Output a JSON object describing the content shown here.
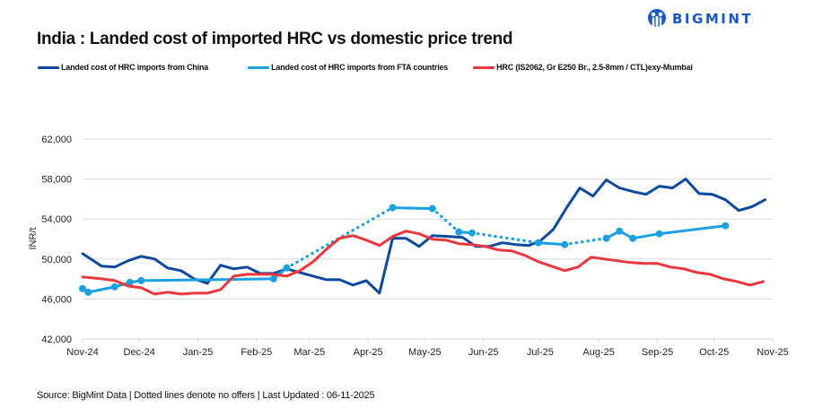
{
  "brand": {
    "name": "BIGMINT",
    "color": "#1a56c4"
  },
  "header": {
    "title": "India : Landed cost of imported HRC vs domestic price trend"
  },
  "footer": {
    "text": "Source: BigMint Data | Dotted lines denote no offers | Last Updated : 06-11-2025"
  },
  "chart_data": {
    "type": "line",
    "title": "India : Landed cost of imported HRC vs domestic price trend",
    "xlabel": "",
    "ylabel": "INR/t",
    "ylim": [
      42000,
      62000
    ],
    "yticks": [
      42000,
      46000,
      50000,
      54000,
      58000,
      62000
    ],
    "ytick_labels": [
      "42,000",
      "46,000",
      "50,000",
      "54,000",
      "58,000",
      "62,000"
    ],
    "xlim": [
      "2024-11-01",
      "2025-11-01"
    ],
    "xticks": [
      "2024-11-01",
      "2024-12-01",
      "2025-01-01",
      "2025-02-01",
      "2025-03-01",
      "2025-04-01",
      "2025-05-01",
      "2025-06-01",
      "2025-07-01",
      "2025-08-01",
      "2025-09-01",
      "2025-10-01",
      "2025-11-01"
    ],
    "xtick_labels": [
      "Nov-24",
      "Dec-24",
      "Jan-25",
      "Feb-25",
      "Mar-25",
      "Apr-25",
      "May-25",
      "Jun-25",
      "Jul-25",
      "Aug-25",
      "Sep-25",
      "Oct-25",
      "Nov-25"
    ],
    "grid": "horizontal",
    "legend_position": "top",
    "series": [
      {
        "name": "Landed cost of HRC imports from China",
        "color": "#0d4a9e",
        "markers": false,
        "points": [
          [
            "2024-11-01",
            50540
          ],
          [
            "2024-11-11",
            49280
          ],
          [
            "2024-11-18",
            49190
          ],
          [
            "2024-11-25",
            49820
          ],
          [
            "2024-12-02",
            50270
          ],
          [
            "2024-12-09",
            50000
          ],
          [
            "2024-12-16",
            49100
          ],
          [
            "2024-12-23",
            48830
          ],
          [
            "2024-12-30",
            48020
          ],
          [
            "2025-01-06",
            47570
          ],
          [
            "2025-01-13",
            49370
          ],
          [
            "2025-01-20",
            49010
          ],
          [
            "2025-01-27",
            49190
          ],
          [
            "2025-02-03",
            48560
          ],
          [
            "2025-02-10",
            48560
          ],
          [
            "2025-02-17",
            49010
          ],
          [
            "2025-02-24",
            48650
          ],
          [
            "2025-03-03",
            48290
          ],
          [
            "2025-03-10",
            47930
          ],
          [
            "2025-03-17",
            47930
          ],
          [
            "2025-03-24",
            47390
          ],
          [
            "2025-03-31",
            47840
          ],
          [
            "2025-04-07",
            46580
          ],
          [
            "2025-04-14",
            52070
          ],
          [
            "2025-04-21",
            52070
          ],
          [
            "2025-04-28",
            51260
          ],
          [
            "2025-05-05",
            52340
          ],
          [
            "2025-05-14",
            52250
          ],
          [
            "2025-05-21",
            52160
          ],
          [
            "2025-05-28",
            51260
          ],
          [
            "2025-06-04",
            51260
          ],
          [
            "2025-06-11",
            51620
          ],
          [
            "2025-06-18",
            51440
          ],
          [
            "2025-06-25",
            51350
          ],
          [
            "2025-07-01",
            51800
          ],
          [
            "2025-07-08",
            52970
          ],
          [
            "2025-07-15",
            55130
          ],
          [
            "2025-07-22",
            57100
          ],
          [
            "2025-07-29",
            56290
          ],
          [
            "2025-08-05",
            57910
          ],
          [
            "2025-08-12",
            57100
          ],
          [
            "2025-08-19",
            56740
          ],
          [
            "2025-08-26",
            56470
          ],
          [
            "2025-09-02",
            57280
          ],
          [
            "2025-09-09",
            57100
          ],
          [
            "2025-09-16",
            58000
          ],
          [
            "2025-09-23",
            56560
          ],
          [
            "2025-09-30",
            56470
          ],
          [
            "2025-10-07",
            55930
          ],
          [
            "2025-10-14",
            54850
          ],
          [
            "2025-10-21",
            55220
          ],
          [
            "2025-10-28",
            55930
          ]
        ]
      },
      {
        "name": "Landed cost of HRC imports from FTA countries",
        "color": "#1ba1e2",
        "markers": true,
        "segments": [
          {
            "style": "solid",
            "points": [
              [
                "2024-11-01",
                47030
              ],
              [
                "2024-11-04",
                46670
              ],
              [
                "2024-11-18",
                47210
              ],
              [
                "2024-11-26",
                47660
              ],
              [
                "2024-12-02",
                47840
              ],
              [
                "2025-02-10",
                48020
              ]
            ]
          },
          {
            "style": "solid",
            "points": [
              [
                "2025-02-10",
                48020
              ],
              [
                "2025-02-17",
                49100
              ]
            ]
          },
          {
            "style": "dotted",
            "points": [
              [
                "2025-02-17",
                49100
              ],
              [
                "2025-04-14",
                55130
              ]
            ]
          },
          {
            "style": "solid",
            "points": [
              [
                "2025-04-14",
                55130
              ],
              [
                "2025-05-05",
                55040
              ]
            ]
          },
          {
            "style": "dotted",
            "points": [
              [
                "2025-05-05",
                55040
              ],
              [
                "2025-05-19",
                52700
              ]
            ]
          },
          {
            "style": "solid",
            "points": [
              [
                "2025-05-19",
                52700
              ],
              [
                "2025-05-26",
                52610
              ]
            ]
          },
          {
            "style": "dotted",
            "points": [
              [
                "2025-05-26",
                52610
              ],
              [
                "2025-06-30",
                51620
              ]
            ]
          },
          {
            "style": "solid",
            "points": [
              [
                "2025-06-30",
                51620
              ],
              [
                "2025-07-14",
                51440
              ]
            ]
          },
          {
            "style": "dotted",
            "points": [
              [
                "2025-07-14",
                51440
              ],
              [
                "2025-08-05",
                52070
              ]
            ]
          },
          {
            "style": "solid",
            "points": [
              [
                "2025-08-05",
                52070
              ],
              [
                "2025-08-12",
                52790
              ],
              [
                "2025-08-19",
                52070
              ],
              [
                "2025-09-02",
                52520
              ],
              [
                "2025-10-07",
                53330
              ]
            ]
          }
        ],
        "marker_points": [
          [
            "2024-11-01",
            47030
          ],
          [
            "2024-11-04",
            46670
          ],
          [
            "2024-11-18",
            47210
          ],
          [
            "2024-11-26",
            47660
          ],
          [
            "2024-12-02",
            47840
          ],
          [
            "2025-02-10",
            48020
          ],
          [
            "2025-02-17",
            49100
          ],
          [
            "2025-04-14",
            55130
          ],
          [
            "2025-05-05",
            55040
          ],
          [
            "2025-05-19",
            52700
          ],
          [
            "2025-05-26",
            52610
          ],
          [
            "2025-06-30",
            51620
          ],
          [
            "2025-07-14",
            51440
          ],
          [
            "2025-08-05",
            52070
          ],
          [
            "2025-08-12",
            52790
          ],
          [
            "2025-08-19",
            52070
          ],
          [
            "2025-09-02",
            52520
          ],
          [
            "2025-10-07",
            53330
          ]
        ]
      },
      {
        "name": "HRC (IS2062, Gr E250 Br., 2.5-8mm / CTL)exy-Mumbai",
        "color": "#e8383d",
        "markers": false,
        "points": [
          [
            "2024-11-01",
            48200
          ],
          [
            "2024-11-11",
            48020
          ],
          [
            "2024-11-18",
            47840
          ],
          [
            "2024-11-25",
            47300
          ],
          [
            "2024-12-02",
            47120
          ],
          [
            "2024-12-09",
            46490
          ],
          [
            "2024-12-16",
            46670
          ],
          [
            "2024-12-23",
            46490
          ],
          [
            "2024-12-30",
            46580
          ],
          [
            "2025-01-06",
            46580
          ],
          [
            "2025-01-13",
            46940
          ],
          [
            "2025-01-20",
            48290
          ],
          [
            "2025-01-27",
            48470
          ],
          [
            "2025-02-03",
            48470
          ],
          [
            "2025-02-10",
            48470
          ],
          [
            "2025-02-17",
            48290
          ],
          [
            "2025-02-24",
            48830
          ],
          [
            "2025-03-03",
            49730
          ],
          [
            "2025-03-10",
            50990
          ],
          [
            "2025-03-17",
            52070
          ],
          [
            "2025-03-24",
            52340
          ],
          [
            "2025-03-31",
            51890
          ],
          [
            "2025-04-07",
            51350
          ],
          [
            "2025-04-14",
            52250
          ],
          [
            "2025-04-21",
            52790
          ],
          [
            "2025-04-28",
            52520
          ],
          [
            "2025-05-05",
            51980
          ],
          [
            "2025-05-12",
            51890
          ],
          [
            "2025-05-19",
            51530
          ],
          [
            "2025-05-26",
            51440
          ],
          [
            "2025-06-02",
            51260
          ],
          [
            "2025-06-09",
            50900
          ],
          [
            "2025-06-16",
            50810
          ],
          [
            "2025-06-23",
            50360
          ],
          [
            "2025-06-30",
            49730
          ],
          [
            "2025-07-07",
            49280
          ],
          [
            "2025-07-14",
            48830
          ],
          [
            "2025-07-21",
            49190
          ],
          [
            "2025-07-28",
            50180
          ],
          [
            "2025-08-04",
            50000
          ],
          [
            "2025-08-11",
            49820
          ],
          [
            "2025-08-18",
            49640
          ],
          [
            "2025-08-25",
            49550
          ],
          [
            "2025-09-01",
            49550
          ],
          [
            "2025-09-08",
            49190
          ],
          [
            "2025-09-15",
            49010
          ],
          [
            "2025-09-22",
            48650
          ],
          [
            "2025-09-29",
            48470
          ],
          [
            "2025-10-06",
            48020
          ],
          [
            "2025-10-13",
            47750
          ],
          [
            "2025-10-20",
            47390
          ],
          [
            "2025-10-27",
            47750
          ]
        ]
      }
    ]
  }
}
